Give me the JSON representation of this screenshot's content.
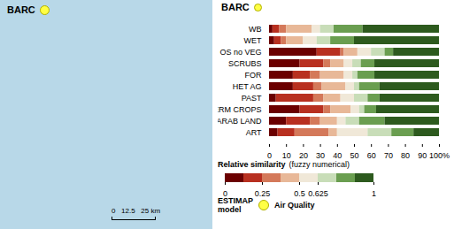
{
  "chart_data": {
    "type": "bar",
    "orientation": "horizontal",
    "stacked": true,
    "grid": false,
    "title": "BARC",
    "categories": [
      "WB",
      "WET",
      "OS no VEG",
      "SCRUBS",
      "FOR",
      "HET AG",
      "PAST",
      "PERM CROPS",
      "ARAB LAND",
      "ART"
    ],
    "series": [
      {
        "color": "#6b0000",
        "values": [
          2,
          3,
          28,
          18,
          14,
          14,
          4,
          18,
          10,
          5
        ]
      },
      {
        "color": "#b83020",
        "values": [
          4,
          4,
          14,
          14,
          10,
          12,
          22,
          14,
          14,
          10
        ]
      },
      {
        "color": "#d4795a",
        "values": [
          4,
          3,
          2,
          4,
          6,
          5,
          6,
          4,
          6,
          20
        ]
      },
      {
        "color": "#e8b898",
        "values": [
          15,
          10,
          8,
          8,
          14,
          14,
          10,
          12,
          10,
          5
        ]
      },
      {
        "color": "#f0e8d8",
        "values": [
          5,
          8,
          8,
          5,
          5,
          5,
          8,
          5,
          5,
          18
        ]
      },
      {
        "color": "#c8ddb8",
        "values": [
          8,
          8,
          8,
          5,
          3,
          3,
          8,
          3,
          8,
          14
        ]
      },
      {
        "color": "#6a9e50",
        "values": [
          17,
          14,
          5,
          8,
          10,
          12,
          7,
          7,
          15,
          13
        ]
      },
      {
        "color": "#2d5a1e",
        "values": [
          45,
          50,
          27,
          38,
          38,
          35,
          35,
          37,
          32,
          15
        ]
      }
    ],
    "xlim": [
      0,
      100
    ],
    "xticks": [
      0,
      10,
      20,
      30,
      40,
      50,
      60,
      70,
      80,
      90,
      {
        "value": 100,
        "label": "100%"
      }
    ],
    "colorbar": {
      "title": "Relative similarity",
      "subtitle": "(fuzzy numerical)",
      "colors": [
        "#6b0000",
        "#b83020",
        "#d4795a",
        "#e8b898",
        "#f0e8d8",
        "#c8ddb8",
        "#6a9e50",
        "#2d5a1e"
      ],
      "range": [
        0,
        1
      ],
      "ticks": [
        0,
        0.25,
        0.5,
        0.625,
        1
      ]
    },
    "annotations": [
      "ESTIMAP\nmodel",
      "Air Quality",
      "0   12.5   25 km"
    ]
  }
}
